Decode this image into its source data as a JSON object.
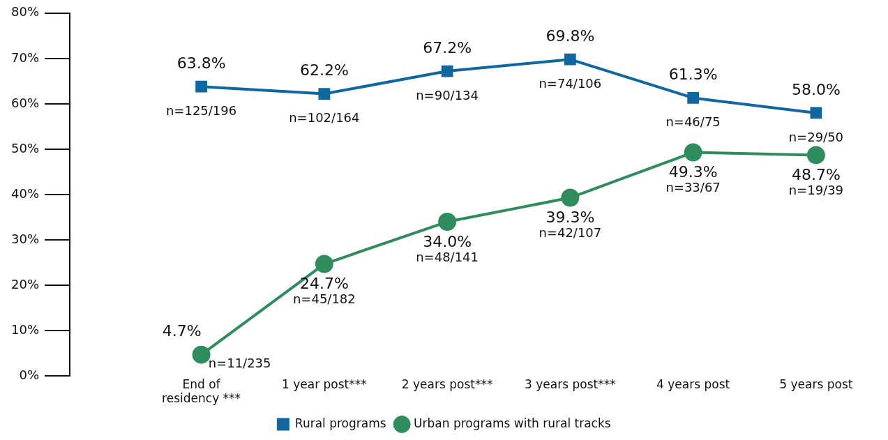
{
  "chart_data": {
    "type": "line",
    "categories": [
      "End of residency ***",
      "1 year post***",
      "2 years post***",
      "3 years post***",
      "4 years post",
      "5 years post"
    ],
    "series": [
      {
        "name": "Rural programs",
        "color": "#0e67a0",
        "marker": "square",
        "values": [
          63.8,
          62.2,
          67.2,
          69.8,
          61.3,
          58.0
        ],
        "value_labels": [
          "63.8%",
          "62.2%",
          "67.2%",
          "69.8%",
          "61.3%",
          "58.0%"
        ]
      },
      {
        "name": "Urban programs with rural tracks",
        "color": "#2f8c5c",
        "marker": "circle",
        "values": [
          4.7,
          24.7,
          34.0,
          39.3,
          49.3,
          48.7
        ],
        "value_labels": [
          "4.7%",
          "24.7%",
          "34.0%",
          "39.3%",
          "49.3%",
          "48.7%"
        ]
      }
    ],
    "annotations": [
      {
        "text": "n=125/196",
        "x": "End of residency ***",
        "y": 63.8
      },
      {
        "text": "n=102/164",
        "x": "1 year post***",
        "y": 62.2
      },
      {
        "text": "n=90/134",
        "x": "2 years post***",
        "y": 67.2
      },
      {
        "text": "n=74/106",
        "x": "3 years post***",
        "y": 69.8
      },
      {
        "text": "n=46/75",
        "x": "4 years post",
        "y": 61.3
      },
      {
        "text": "n=29/50",
        "x": "5 years post",
        "y": 58.0
      },
      {
        "text": "n=11/235",
        "x": "End of residency ***",
        "y": 4.7
      },
      {
        "text": "n=45/182",
        "x": "1 year post***",
        "y": 24.7
      },
      {
        "text": "n=48/141",
        "x": "2 years post***",
        "y": 34.0
      },
      {
        "text": "n=42/107",
        "x": "3 years post***",
        "y": 39.3
      },
      {
        "text": "n=33/67",
        "x": "4 years post",
        "y": 49.3
      },
      {
        "text": "n=19/39",
        "x": "5 years post",
        "y": 48.7
      }
    ],
    "ylim": [
      0,
      80
    ],
    "yticks": [
      {
        "value": 0,
        "label": "0%"
      },
      {
        "value": 10,
        "label": "10%"
      },
      {
        "value": 20,
        "label": "20%"
      },
      {
        "value": 30,
        "label": "30%"
      },
      {
        "value": 40,
        "label": "40%"
      },
      {
        "value": 50,
        "label": "50%"
      },
      {
        "value": 60,
        "label": "60%"
      },
      {
        "value": 70,
        "label": "70%"
      },
      {
        "value": 80,
        "label": "80%"
      }
    ],
    "grid": false,
    "legend": "bottom"
  }
}
